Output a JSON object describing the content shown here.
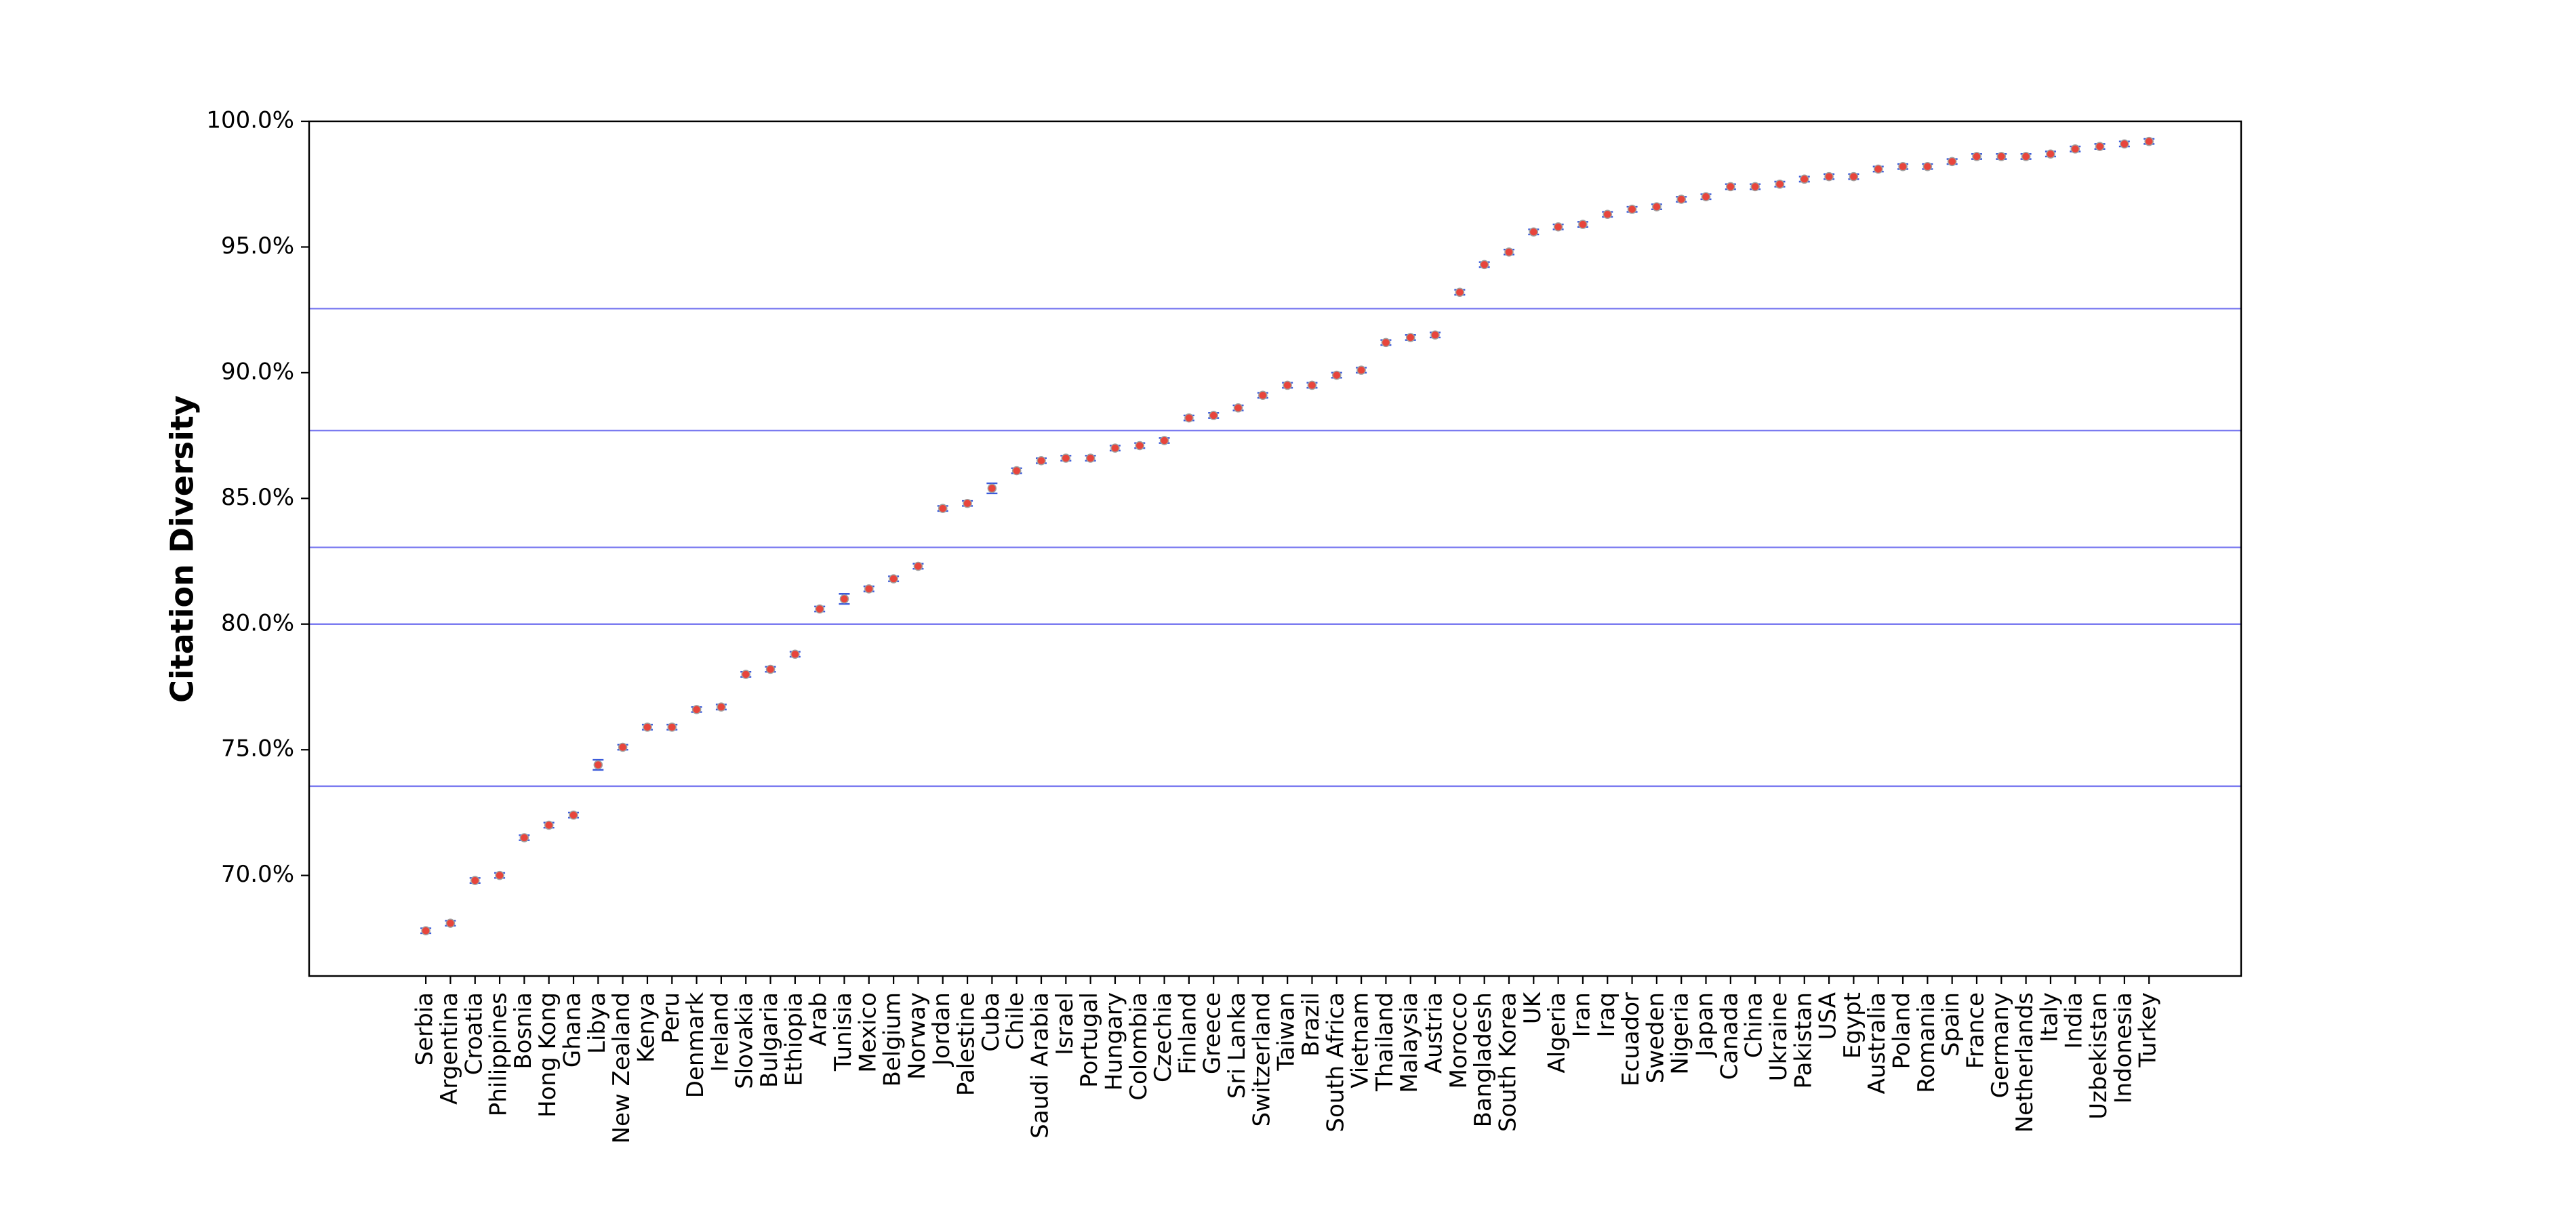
{
  "chart_data": {
    "type": "errorbar",
    "y_label": "Citation Diversity",
    "categories": [
      "Serbia",
      "Argentina",
      "Croatia",
      "Philippines",
      "Bosnia",
      "Hong Kong",
      "Ghana",
      "Libya",
      "New Zealand",
      "Kenya",
      "Peru",
      "Denmark",
      "Ireland",
      "Slovakia",
      "Bulgaria",
      "Ethiopia",
      "Arab",
      "Tunisia",
      "Mexico",
      "Belgium",
      "Norway",
      "Jordan",
      "Palestine",
      "Cuba",
      "Chile",
      "Saudi Arabia",
      "Israel",
      "Portugal",
      "Hungary",
      "Colombia",
      "Czechia",
      "Finland",
      "Greece",
      "Sri Lanka",
      "Switzerland",
      "Taiwan",
      "Brazil",
      "South Africa",
      "Vietnam",
      "Thailand",
      "Malaysia",
      "Austria",
      "Morocco",
      "Bangladesh",
      "South Korea",
      "UK",
      "Algeria",
      "Iran",
      "Iraq",
      "Ecuador",
      "Sweden",
      "Nigeria",
      "Japan",
      "Canada",
      "China",
      "Ukraine",
      "Pakistan",
      "USA",
      "Egypt",
      "Australia",
      "Poland",
      "Romania",
      "Spain",
      "France",
      "Germany",
      "Netherlands",
      "Italy",
      "India",
      "Uzbekistan",
      "Indonesia",
      "Turkey"
    ],
    "values": [
      67.8,
      68.1,
      69.8,
      70.0,
      71.5,
      72.0,
      72.4,
      74.4,
      75.1,
      75.9,
      75.9,
      76.6,
      76.7,
      78.0,
      78.2,
      78.8,
      80.6,
      81.0,
      81.4,
      81.8,
      82.3,
      84.6,
      84.8,
      85.4,
      86.1,
      86.5,
      86.6,
      86.6,
      87.0,
      87.1,
      87.3,
      88.2,
      88.3,
      88.6,
      89.1,
      89.5,
      89.5,
      89.9,
      90.1,
      91.2,
      91.4,
      91.5,
      93.2,
      94.3,
      94.8,
      95.6,
      95.8,
      95.9,
      96.3,
      96.5,
      96.6,
      96.9,
      97.0,
      97.4,
      97.4,
      97.5,
      97.7,
      97.8,
      97.8,
      98.1,
      98.2,
      98.2,
      98.4,
      98.6,
      98.6,
      98.6,
      98.7,
      98.9,
      99.0,
      99.1,
      99.2
    ],
    "errors": [
      0.1,
      0.1,
      0.1,
      0.1,
      0.1,
      0.1,
      0.1,
      0.2,
      0.1,
      0.1,
      0.1,
      0.1,
      0.1,
      0.1,
      0.1,
      0.1,
      0.1,
      0.2,
      0.1,
      0.1,
      0.1,
      0.1,
      0.1,
      0.2,
      0.1,
      0.1,
      0.1,
      0.1,
      0.1,
      0.1,
      0.1,
      0.1,
      0.1,
      0.1,
      0.1,
      0.1,
      0.1,
      0.1,
      0.1,
      0.1,
      0.1,
      0.1,
      0.1,
      0.1,
      0.1,
      0.1,
      0.1,
      0.1,
      0.1,
      0.1,
      0.1,
      0.1,
      0.1,
      0.1,
      0.1,
      0.1,
      0.1,
      0.1,
      0.1,
      0.1,
      0.1,
      0.1,
      0.1,
      0.1,
      0.1,
      0.1,
      0.1,
      0.1,
      0.1,
      0.1,
      0.1
    ],
    "color": "#e8453c",
    "error_color": "#3b5bdb",
    "ylim": [
      66,
      100
    ],
    "yticks": [
      {
        "value": 70,
        "label": "70.0%"
      },
      {
        "value": 75,
        "label": "75.0%"
      },
      {
        "value": 80,
        "label": "80.0%"
      },
      {
        "value": 85,
        "label": "85.0%"
      },
      {
        "value": 90,
        "label": "90.0%"
      },
      {
        "value": 95,
        "label": "95.0%"
      },
      {
        "value": 100,
        "label": "100.0%"
      }
    ],
    "hlines": [
      92.55,
      87.7,
      83.05,
      80.0,
      73.55
    ],
    "hline_color": "#7b7bf0"
  }
}
